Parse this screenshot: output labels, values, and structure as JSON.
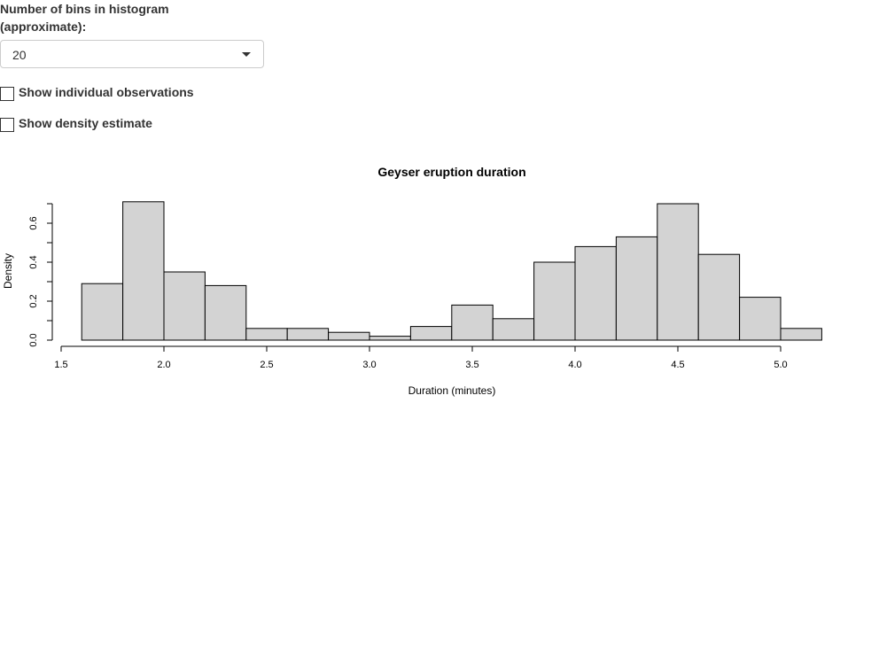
{
  "controls": {
    "bins_label": "Number of bins in histogram (approximate):",
    "bins_selected": "20",
    "show_observations_label": "Show individual observations",
    "show_observations_checked": false,
    "show_density_label": "Show density estimate",
    "show_density_checked": false
  },
  "chart_data": {
    "type": "bar",
    "title": "Geyser eruption duration",
    "xlabel": "Duration (minutes)",
    "ylabel": "Density",
    "bin_edges": [
      1.6,
      1.8,
      2.0,
      2.2,
      2.4,
      2.6,
      2.8,
      3.0,
      3.2,
      3.4,
      3.6,
      3.8,
      4.0,
      4.2,
      4.4,
      4.6,
      4.8,
      5.0,
      5.2
    ],
    "values": [
      0.29,
      0.71,
      0.35,
      0.28,
      0.06,
      0.06,
      0.04,
      0.02,
      0.07,
      0.18,
      0.11,
      0.4,
      0.48,
      0.53,
      0.7,
      0.44,
      0.22,
      0.06
    ],
    "xlim": [
      1.5,
      5.2
    ],
    "ylim": [
      0,
      0.7
    ],
    "x_ticks": [
      1.5,
      2.0,
      2.5,
      3.0,
      3.5,
      4.0,
      4.5,
      5.0
    ],
    "x_tick_labels": [
      "1.5",
      "2.0",
      "2.5",
      "3.0",
      "3.5",
      "4.0",
      "4.5",
      "5.0"
    ],
    "y_ticks": [
      0.0,
      0.2,
      0.4,
      0.6
    ],
    "y_tick_labels": [
      "0.0",
      "0.2",
      "0.4",
      "0.6"
    ],
    "y_minor_ticks": [
      0.1,
      0.3,
      0.5,
      0.7
    ],
    "bar_fill": "#d3d3d3",
    "bar_stroke": "#000000",
    "grid": false
  }
}
